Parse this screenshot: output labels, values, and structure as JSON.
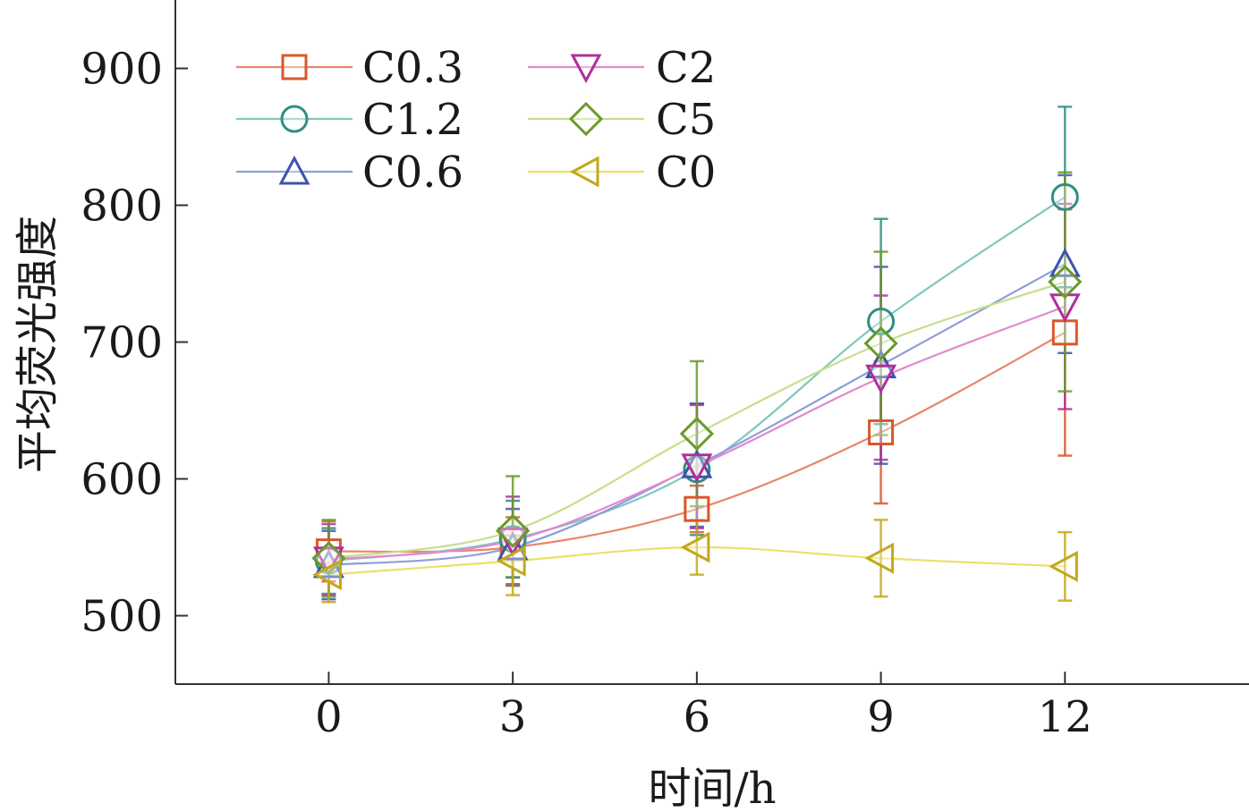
{
  "chart_data": {
    "type": "line",
    "title": "",
    "xlabel": "时间/h",
    "ylabel": "平均荧光强度",
    "x": [
      0,
      3,
      6,
      9,
      12
    ],
    "xlim": [
      -2.5,
      15
    ],
    "ylim": [
      450,
      950
    ],
    "xticks": [
      "0",
      "3",
      "6",
      "9",
      "12"
    ],
    "yticks": [
      "500",
      "600",
      "700",
      "800",
      "900"
    ],
    "ytick_values": [
      500,
      600,
      700,
      800,
      900
    ],
    "grid": false,
    "legend_position": "top-left",
    "series": [
      {
        "name": "C0.3",
        "marker": "square",
        "color": "#e8866a",
        "marker_color": "#d9582a",
        "values": [
          547,
          550,
          578,
          634,
          707
        ],
        "errors": [
          22,
          22,
          17,
          52,
          90
        ]
      },
      {
        "name": "C1.2",
        "marker": "circle",
        "color": "#7ec8bd",
        "marker_color": "#2f8f80",
        "values": [
          540,
          556,
          607,
          715,
          806
        ],
        "errors": [
          24,
          28,
          48,
          75,
          66
        ]
      },
      {
        "name": "C0.6",
        "marker": "triangle-up",
        "color": "#8f9ed8",
        "marker_color": "#3d55a8",
        "values": [
          537,
          550,
          610,
          683,
          757
        ],
        "errors": [
          25,
          28,
          45,
          72,
          65
        ]
      },
      {
        "name": "C2",
        "marker": "triangle-down",
        "color": "#e388cf",
        "marker_color": "#b02f9a",
        "values": [
          541,
          555,
          609,
          674,
          726
        ],
        "errors": [
          26,
          32,
          45,
          60,
          75
        ]
      },
      {
        "name": "C5",
        "marker": "diamond",
        "color": "#c5df8a",
        "marker_color": "#6a9a2a",
        "values": [
          542,
          562,
          633,
          699,
          744
        ],
        "errors": [
          28,
          40,
          53,
          67,
          80
        ]
      },
      {
        "name": "C0",
        "marker": "triangle-left",
        "color": "#ece06a",
        "marker_color": "#c3a81c",
        "values": [
          530,
          540,
          550,
          542,
          536
        ],
        "errors": [
          20,
          25,
          20,
          28,
          25
        ]
      }
    ]
  }
}
